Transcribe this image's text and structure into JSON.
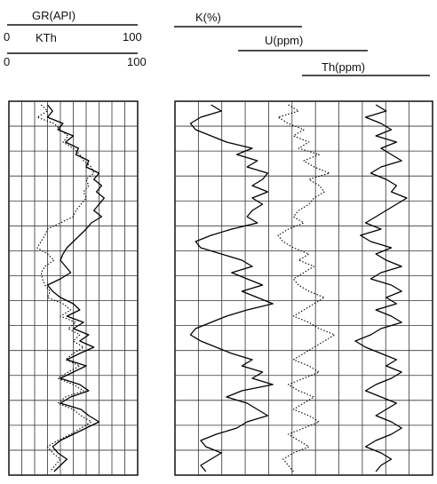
{
  "chart_data": [
    {
      "type": "line",
      "track": "left",
      "scales": [
        {
          "name": "GR(API)",
          "min_label": "0",
          "max_label": "100",
          "range": [
            0,
            100
          ]
        },
        {
          "name": "KTh",
          "min_label": "0",
          "max_label": "100",
          "range": [
            0,
            100
          ]
        }
      ],
      "grid": true,
      "grid_columns": 10,
      "grid_rows": 15,
      "samples": 60,
      "series": [
        {
          "name": "GR(API)",
          "style": "solid",
          "values": [
            30,
            34,
            30,
            42,
            38,
            50,
            44,
            54,
            52,
            62,
            60,
            70,
            66,
            72,
            68,
            74,
            70,
            66,
            72,
            64,
            60,
            55,
            50,
            45,
            42,
            40,
            44,
            48,
            40,
            30,
            34,
            40,
            50,
            55,
            45,
            58,
            50,
            62,
            55,
            66,
            55,
            45,
            60,
            50,
            40,
            55,
            62,
            48,
            40,
            56,
            62,
            70,
            60,
            50,
            40,
            34,
            38,
            45,
            40,
            35
          ]
        },
        {
          "name": "KTh",
          "style": "dotted",
          "values": [
            25,
            30,
            22,
            35,
            40,
            46,
            42,
            50,
            55,
            58,
            64,
            66,
            60,
            62,
            58,
            60,
            56,
            52,
            50,
            40,
            30,
            28,
            25,
            22,
            30,
            35,
            28,
            25,
            26,
            28,
            32,
            30,
            42,
            48,
            40,
            52,
            46,
            55,
            50,
            58,
            50,
            44,
            55,
            46,
            38,
            50,
            58,
            44,
            38,
            50,
            56,
            64,
            56,
            48,
            38,
            30,
            34,
            40,
            36,
            32
          ]
        }
      ]
    },
    {
      "type": "line",
      "track": "right",
      "scales": [
        {
          "name": "K(%)"
        },
        {
          "name": "U(ppm)"
        },
        {
          "name": "Th(ppm)"
        }
      ],
      "grid": true,
      "grid_columns": 11,
      "grid_rows": 15,
      "samples": 60,
      "series": [
        {
          "name": "K(%)",
          "style": "solid",
          "values": [
            14,
            18,
            10,
            6,
            8,
            14,
            20,
            30,
            24,
            32,
            28,
            36,
            34,
            30,
            36,
            30,
            34,
            30,
            28,
            32,
            22,
            14,
            8,
            10,
            18,
            26,
            30,
            22,
            28,
            34,
            26,
            32,
            38,
            28,
            20,
            14,
            8,
            6,
            10,
            16,
            22,
            30,
            26,
            34,
            30,
            38,
            26,
            20,
            28,
            32,
            36,
            28,
            24,
            16,
            10,
            12,
            18,
            14,
            10,
            12
          ]
        },
        {
          "name": "U(ppm)",
          "style": "dotted",
          "values": [
            44,
            48,
            40,
            44,
            50,
            46,
            52,
            48,
            56,
            50,
            54,
            60,
            52,
            56,
            58,
            54,
            52,
            48,
            46,
            50,
            44,
            40,
            42,
            46,
            52,
            48,
            54,
            50,
            46,
            48,
            52,
            58,
            54,
            50,
            46,
            52,
            56,
            62,
            58,
            54,
            50,
            46,
            52,
            56,
            50,
            44,
            48,
            54,
            50,
            46,
            52,
            56,
            50,
            44,
            48,
            52,
            46,
            42,
            44,
            46
          ]
        },
        {
          "name": "Th(ppm)",
          "style": "solid",
          "values": [
            78,
            82,
            74,
            80,
            84,
            78,
            86,
            80,
            84,
            88,
            80,
            76,
            82,
            86,
            84,
            90,
            86,
            82,
            78,
            74,
            80,
            72,
            76,
            84,
            78,
            82,
            88,
            80,
            76,
            84,
            88,
            82,
            86,
            78,
            84,
            88,
            80,
            76,
            70,
            74,
            80,
            86,
            82,
            88,
            84,
            78,
            74,
            80,
            86,
            82,
            78,
            84,
            88,
            84,
            78,
            74,
            80,
            84,
            80,
            78
          ]
        }
      ]
    }
  ]
}
